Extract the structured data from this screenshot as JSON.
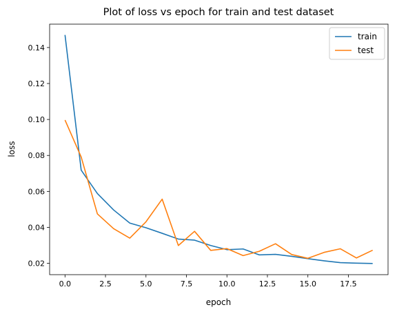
{
  "chart_data": {
    "type": "line",
    "title": "Plot of loss vs epoch for train and test dataset",
    "xlabel": "epoch",
    "ylabel": "loss",
    "xlim": [
      -0.95,
      19.95
    ],
    "ylim": [
      0.0137,
      0.153
    ],
    "xticks": [
      0.0,
      2.5,
      5.0,
      7.5,
      10.0,
      12.5,
      15.0,
      17.5
    ],
    "xtick_labels": [
      "0.0",
      "2.5",
      "5.0",
      "7.5",
      "10.0",
      "12.5",
      "15.0",
      "17.5"
    ],
    "yticks": [
      0.02,
      0.04,
      0.06,
      0.08,
      0.1,
      0.12,
      0.14
    ],
    "ytick_labels": [
      "0.02",
      "0.04",
      "0.06",
      "0.08",
      "0.10",
      "0.12",
      "0.14"
    ],
    "grid": false,
    "legend_position": "top-right",
    "x": [
      0,
      1,
      2,
      3,
      4,
      5,
      6,
      7,
      8,
      9,
      10,
      11,
      12,
      13,
      14,
      15,
      16,
      17,
      18,
      19
    ],
    "series": [
      {
        "name": "train",
        "color": "#1f77b4",
        "values": [
          0.147,
          0.0718,
          0.0588,
          0.0497,
          0.0424,
          0.0398,
          0.0367,
          0.0335,
          0.0329,
          0.0299,
          0.0276,
          0.028,
          0.0247,
          0.025,
          0.0239,
          0.0226,
          0.0214,
          0.0204,
          0.0201,
          0.0199
        ]
      },
      {
        "name": "test",
        "color": "#ff7f0e",
        "values": [
          0.0997,
          0.0791,
          0.0475,
          0.0393,
          0.034,
          0.0431,
          0.0557,
          0.0299,
          0.0378,
          0.0272,
          0.0282,
          0.0243,
          0.0267,
          0.0309,
          0.0249,
          0.0228,
          0.0261,
          0.0281,
          0.023,
          0.0273
        ]
      }
    ]
  }
}
